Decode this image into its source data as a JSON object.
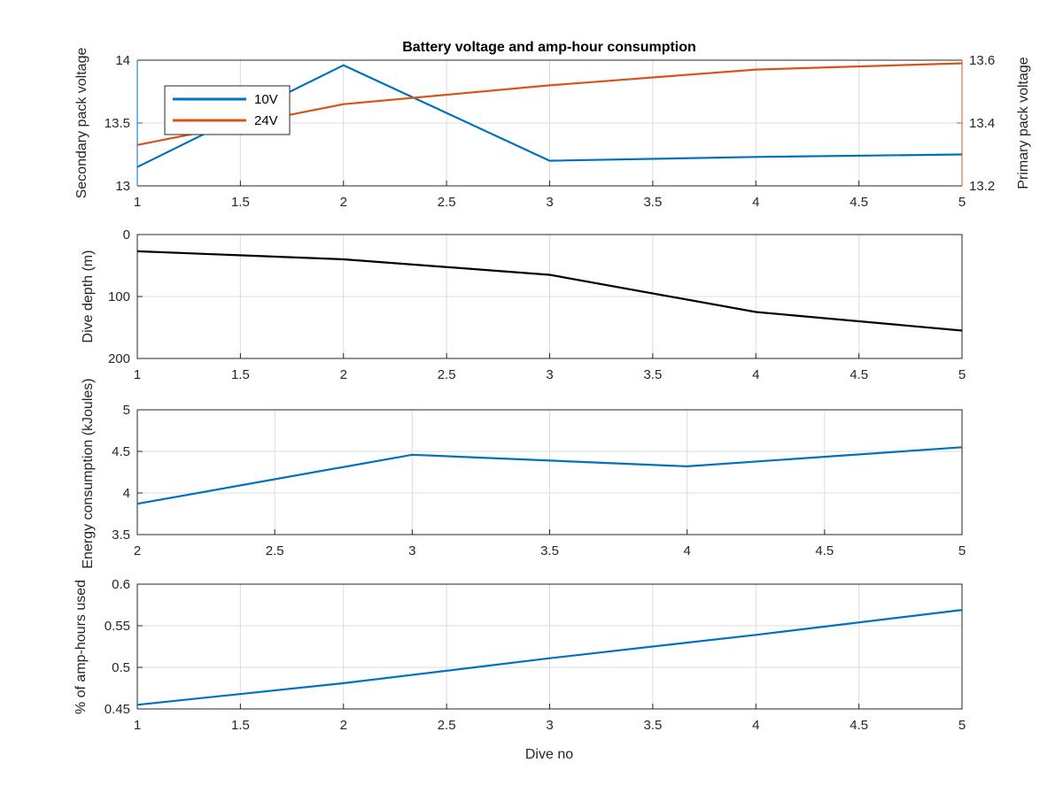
{
  "colors": {
    "blue": "#0072BD",
    "orange": "#D95319",
    "black": "#000000",
    "grid": "#dcdcdc",
    "axis": "#262626"
  },
  "chart_data": [
    {
      "type": "line",
      "title": "Battery voltage and amp-hour consumption",
      "xlabel": "",
      "x": [
        1,
        2,
        3,
        4,
        5
      ],
      "xlim": [
        1,
        5
      ],
      "xticks": [
        "1",
        "1.5",
        "2",
        "2.5",
        "3",
        "3.5",
        "4",
        "4.5",
        "5"
      ],
      "grid": true,
      "legend": {
        "placement": "top-left",
        "entries": [
          "10V",
          "24V"
        ]
      },
      "left_axis": {
        "ylabel": "Secondary pack voltage",
        "ylim": [
          13,
          14
        ],
        "yticks": [
          "13",
          "13.5",
          "14"
        ],
        "color": "#0072BD"
      },
      "right_axis": {
        "ylabel": "Primary pack voltage",
        "ylim": [
          13.2,
          13.6
        ],
        "yticks": [
          "13.2",
          "13.4",
          "13.6"
        ],
        "color": "#D95319"
      },
      "series": [
        {
          "name": "10V",
          "axis": "left",
          "color": "#0072BD",
          "values": [
            13.15,
            13.96,
            13.2,
            13.23,
            13.25
          ]
        },
        {
          "name": "24V",
          "axis": "right",
          "color": "#D95319",
          "values": [
            13.33,
            13.46,
            13.52,
            13.57,
            13.59
          ]
        }
      ]
    },
    {
      "type": "line",
      "ylabel": "Dive depth (m)",
      "x": [
        1,
        2,
        3,
        4,
        5
      ],
      "xlim": [
        1,
        5
      ],
      "xticks": [
        "1",
        "1.5",
        "2",
        "2.5",
        "3",
        "3.5",
        "4",
        "4.5",
        "5"
      ],
      "ylim": [
        0,
        200
      ],
      "yreversed": true,
      "yticks": [
        "0",
        "100",
        "200"
      ],
      "grid": true,
      "series": [
        {
          "color": "#000000",
          "values": [
            27,
            40,
            65,
            125,
            155
          ]
        }
      ]
    },
    {
      "type": "line",
      "ylabel": "Energy consumption (kJoules)",
      "x": [
        2,
        3,
        4,
        5
      ],
      "xlim": [
        2,
        5
      ],
      "xticks": [
        "2",
        "2.5",
        "3",
        "3.5",
        "4",
        "4.5",
        "5"
      ],
      "ylim": [
        3.5,
        5
      ],
      "yticks": [
        "3.5",
        "4",
        "4.5",
        "5"
      ],
      "grid": true,
      "series": [
        {
          "color": "#0072BD",
          "values": [
            3.87,
            4.46,
            4.32,
            4.55
          ]
        }
      ]
    },
    {
      "type": "line",
      "ylabel": "% of amp-hours used",
      "xlabel": "Dive no",
      "x": [
        1,
        2,
        3,
        4,
        5
      ],
      "xlim": [
        1,
        5
      ],
      "xticks": [
        "1",
        "1.5",
        "2",
        "2.5",
        "3",
        "3.5",
        "4",
        "4.5",
        "5"
      ],
      "ylim": [
        0.45,
        0.6
      ],
      "yticks": [
        "0.45",
        "0.5",
        "0.55",
        "0.6"
      ],
      "grid": true,
      "series": [
        {
          "color": "#0072BD",
          "values": [
            0.455,
            0.481,
            0.511,
            0.539,
            0.569
          ]
        }
      ]
    }
  ]
}
